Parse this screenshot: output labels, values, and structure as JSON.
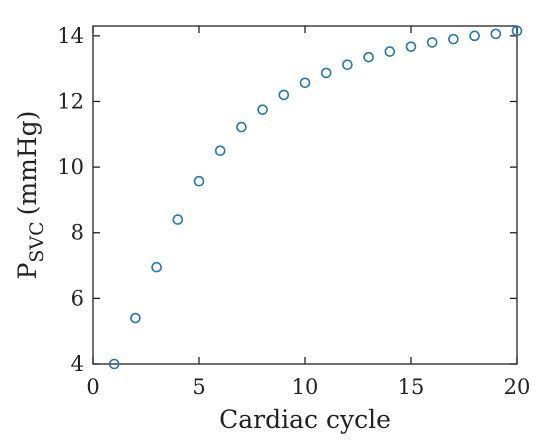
{
  "chart_data": {
    "type": "scatter",
    "title": "",
    "xlabel": "Cardiac cycle",
    "ylabel": {
      "main": "P",
      "subscript": "SVC",
      "unit": "(mmHg)"
    },
    "xlim": [
      0,
      20
    ],
    "ylim": [
      4,
      14.3
    ],
    "xticks": [
      0,
      5,
      10,
      15,
      20
    ],
    "yticks": [
      4,
      6,
      8,
      10,
      12,
      14
    ],
    "grid": false,
    "marker": "open-circle",
    "color": "#1f77b4",
    "series": [
      {
        "x": [
          1,
          2,
          3,
          4,
          5,
          6,
          7,
          8,
          9,
          10,
          11,
          12,
          13,
          14,
          15,
          16,
          17,
          18,
          19,
          20
        ],
        "y": [
          4.0,
          5.4,
          6.95,
          8.4,
          9.57,
          10.5,
          11.22,
          11.75,
          12.2,
          12.57,
          12.87,
          13.12,
          13.35,
          13.52,
          13.67,
          13.8,
          13.9,
          14.0,
          14.06,
          14.15
        ]
      }
    ]
  }
}
